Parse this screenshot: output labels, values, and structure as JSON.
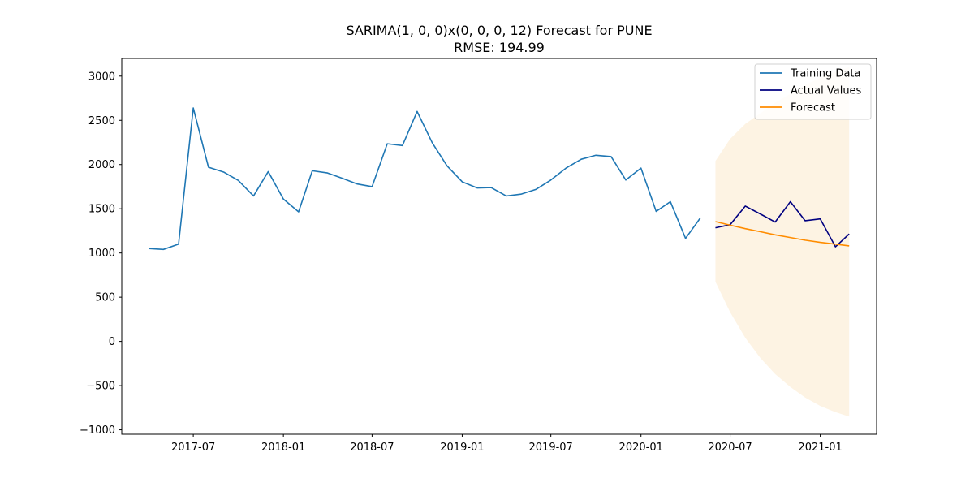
{
  "chart_data": {
    "type": "line",
    "title": "SARIMA(1, 0, 0)x(0, 0, 0, 12) Forecast for PUNE",
    "subtitle": "RMSE: 194.99",
    "xlabel": "",
    "ylabel": "",
    "ylim": [
      -1050,
      3200
    ],
    "xlim": [
      "2017-02-05",
      "2021-04-26"
    ],
    "grid": false,
    "legend_position": "top-right",
    "x_ticks": [
      {
        "date": "2017-07-01",
        "label": "2017-07"
      },
      {
        "date": "2018-01-01",
        "label": "2018-01"
      },
      {
        "date": "2018-07-01",
        "label": "2018-07"
      },
      {
        "date": "2019-01-01",
        "label": "2019-01"
      },
      {
        "date": "2019-07-01",
        "label": "2019-07"
      },
      {
        "date": "2020-01-01",
        "label": "2020-01"
      },
      {
        "date": "2020-07-01",
        "label": "2020-07"
      },
      {
        "date": "2021-01-01",
        "label": "2021-01"
      }
    ],
    "y_ticks": [
      {
        "value": -1000,
        "label": "−1000"
      },
      {
        "value": -500,
        "label": "−500"
      },
      {
        "value": 0,
        "label": "0"
      },
      {
        "value": 500,
        "label": "500"
      },
      {
        "value": 1000,
        "label": "1000"
      },
      {
        "value": 1500,
        "label": "1500"
      },
      {
        "value": 2000,
        "label": "2000"
      },
      {
        "value": 2500,
        "label": "2500"
      },
      {
        "value": 3000,
        "label": "3000"
      }
    ],
    "series": [
      {
        "name": "Training Data",
        "color": "#1f77b4",
        "x": [
          "2017-04-01",
          "2017-05-01",
          "2017-06-01",
          "2017-07-01",
          "2017-08-01",
          "2017-09-01",
          "2017-10-01",
          "2017-11-01",
          "2017-12-01",
          "2018-01-01",
          "2018-02-01",
          "2018-03-01",
          "2018-04-01",
          "2018-05-01",
          "2018-06-01",
          "2018-07-01",
          "2018-08-01",
          "2018-09-01",
          "2018-10-01",
          "2018-11-01",
          "2018-12-01",
          "2019-01-01",
          "2019-02-01",
          "2019-03-01",
          "2019-04-01",
          "2019-05-01",
          "2019-06-01",
          "2019-07-01",
          "2019-08-01",
          "2019-09-01",
          "2019-10-01",
          "2019-11-01",
          "2019-12-01",
          "2020-01-01",
          "2020-02-01",
          "2020-03-01",
          "2020-04-01",
          "2020-05-01"
        ],
        "values": [
          1050,
          1040,
          1100,
          2640,
          1970,
          1915,
          1820,
          1645,
          1920,
          1610,
          1465,
          1930,
          1905,
          1845,
          1780,
          1750,
          2235,
          2215,
          2600,
          2245,
          1985,
          1805,
          1735,
          1740,
          1645,
          1665,
          1720,
          1825,
          1960,
          2060,
          2105,
          2090,
          1825,
          1960,
          1470,
          1580,
          1165,
          1395
        ]
      },
      {
        "name": "Actual Values",
        "color": "#000080",
        "x": [
          "2020-06-01",
          "2020-07-01",
          "2020-08-01",
          "2020-09-01",
          "2020-10-01",
          "2020-11-01",
          "2020-12-01",
          "2021-01-01",
          "2021-02-01",
          "2021-03-01"
        ],
        "values": [
          1285,
          1320,
          1530,
          1440,
          1350,
          1580,
          1365,
          1385,
          1070,
          1215
        ]
      },
      {
        "name": "Forecast",
        "color": "#ff8c00",
        "x": [
          "2020-06-01",
          "2020-07-01",
          "2020-08-01",
          "2020-09-01",
          "2020-10-01",
          "2020-11-01",
          "2020-12-01",
          "2021-01-01",
          "2021-02-01",
          "2021-03-01"
        ],
        "values": [
          1355,
          1315,
          1275,
          1240,
          1205,
          1175,
          1145,
          1120,
          1100,
          1080
        ]
      }
    ],
    "confidence_interval": {
      "color": "#fdf3e3",
      "x": [
        "2020-06-01",
        "2020-07-01",
        "2020-08-01",
        "2020-09-01",
        "2020-10-01",
        "2020-11-01",
        "2020-12-01",
        "2021-01-01",
        "2021-02-01",
        "2021-03-01"
      ],
      "lower": [
        675,
        330,
        40,
        -190,
        -370,
        -515,
        -635,
        -730,
        -800,
        -850
      ],
      "upper": [
        2040,
        2290,
        2460,
        2580,
        2700,
        2800,
        2900,
        2980,
        3050,
        3100
      ]
    }
  }
}
